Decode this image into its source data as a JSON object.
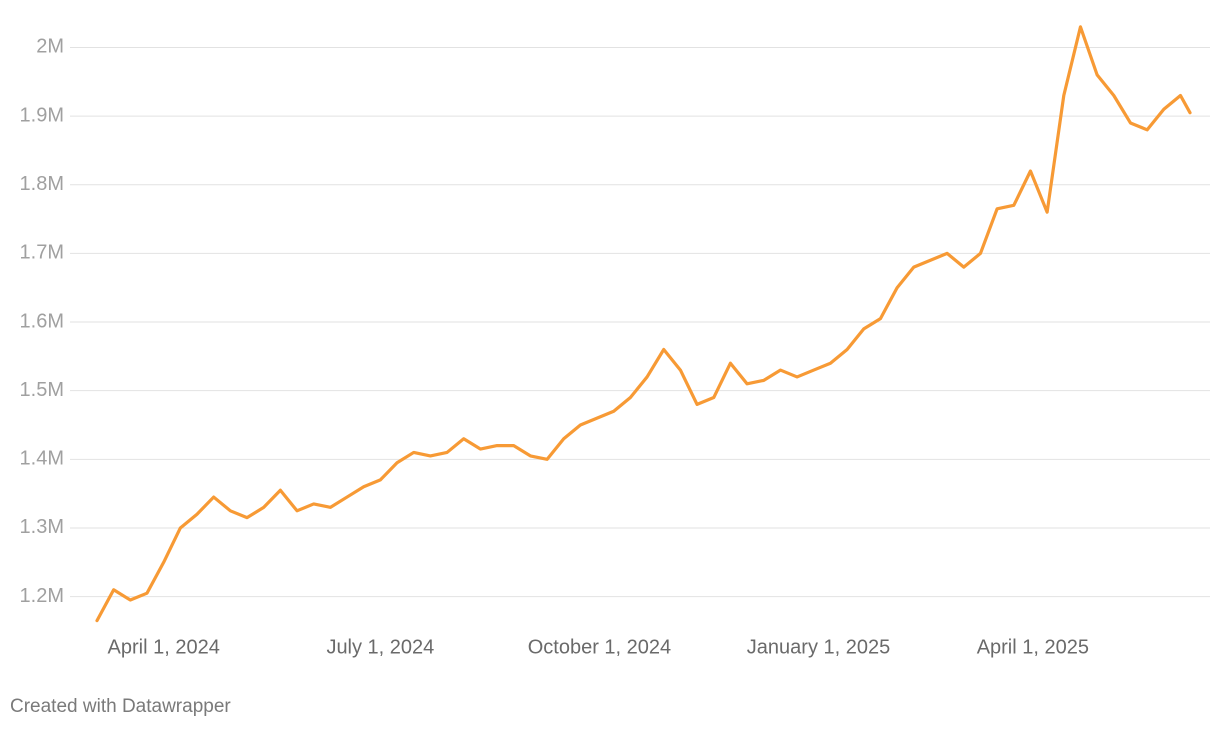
{
  "chart_data": {
    "type": "line",
    "x": [
      "2024-03-04",
      "2024-03-11",
      "2024-03-18",
      "2024-03-25",
      "2024-04-01",
      "2024-04-08",
      "2024-04-15",
      "2024-04-22",
      "2024-04-29",
      "2024-05-06",
      "2024-05-13",
      "2024-05-20",
      "2024-05-27",
      "2024-06-03",
      "2024-06-10",
      "2024-06-17",
      "2024-06-24",
      "2024-07-01",
      "2024-07-08",
      "2024-07-15",
      "2024-07-22",
      "2024-07-29",
      "2024-08-05",
      "2024-08-12",
      "2024-08-19",
      "2024-08-26",
      "2024-09-02",
      "2024-09-09",
      "2024-09-16",
      "2024-09-23",
      "2024-09-30",
      "2024-10-07",
      "2024-10-14",
      "2024-10-21",
      "2024-10-28",
      "2024-11-04",
      "2024-11-11",
      "2024-11-18",
      "2024-11-25",
      "2024-12-02",
      "2024-12-09",
      "2024-12-16",
      "2024-12-23",
      "2024-12-30",
      "2025-01-06",
      "2025-01-13",
      "2025-01-20",
      "2025-01-27",
      "2025-02-03",
      "2025-02-10",
      "2025-02-17",
      "2025-02-24",
      "2025-03-03",
      "2025-03-10",
      "2025-03-17",
      "2025-03-24",
      "2025-03-31",
      "2025-04-07",
      "2025-04-14",
      "2025-04-21",
      "2025-04-28",
      "2025-05-05",
      "2025-05-12",
      "2025-05-19",
      "2025-05-26",
      "2025-06-02",
      "2025-06-06"
    ],
    "series": [
      {
        "color": "#f79a35",
        "values": [
          1165000,
          1210000,
          1195000,
          1205000,
          1250000,
          1300000,
          1320000,
          1345000,
          1325000,
          1315000,
          1330000,
          1355000,
          1325000,
          1335000,
          1330000,
          1345000,
          1360000,
          1370000,
          1395000,
          1410000,
          1405000,
          1410000,
          1430000,
          1415000,
          1420000,
          1420000,
          1405000,
          1400000,
          1430000,
          1450000,
          1460000,
          1470000,
          1490000,
          1520000,
          1560000,
          1530000,
          1480000,
          1490000,
          1540000,
          1510000,
          1515000,
          1530000,
          1520000,
          1530000,
          1540000,
          1560000,
          1590000,
          1605000,
          1650000,
          1680000,
          1690000,
          1700000,
          1680000,
          1700000,
          1765000,
          1770000,
          1820000,
          1760000,
          1930000,
          2030000,
          1960000,
          1930000,
          1890000,
          1880000,
          1910000,
          1930000,
          1905000
        ]
      }
    ],
    "xlim": [
      "2024-03-04",
      "2025-06-06"
    ],
    "xticks": [
      {
        "value": "2024-04-01",
        "label": "April 1, 2024"
      },
      {
        "value": "2024-07-01",
        "label": "July 1, 2024"
      },
      {
        "value": "2024-10-01",
        "label": "October 1, 2024"
      },
      {
        "value": "2025-01-01",
        "label": "January 1, 2025"
      },
      {
        "value": "2025-04-01",
        "label": "April 1, 2025"
      }
    ],
    "ylim": [
      1163000,
      2040000
    ],
    "yticks": [
      {
        "value": 1200000,
        "label": "1.2M"
      },
      {
        "value": 1300000,
        "label": "1.3M"
      },
      {
        "value": 1400000,
        "label": "1.4M"
      },
      {
        "value": 1500000,
        "label": "1.5M"
      },
      {
        "value": 1600000,
        "label": "1.6M"
      },
      {
        "value": 1700000,
        "label": "1.7M"
      },
      {
        "value": 1800000,
        "label": "1.8M"
      },
      {
        "value": 1900000,
        "label": "1.9M"
      },
      {
        "value": 2000000,
        "label": "2M"
      }
    ],
    "grid": true,
    "footer": "Created with Datawrapper"
  }
}
